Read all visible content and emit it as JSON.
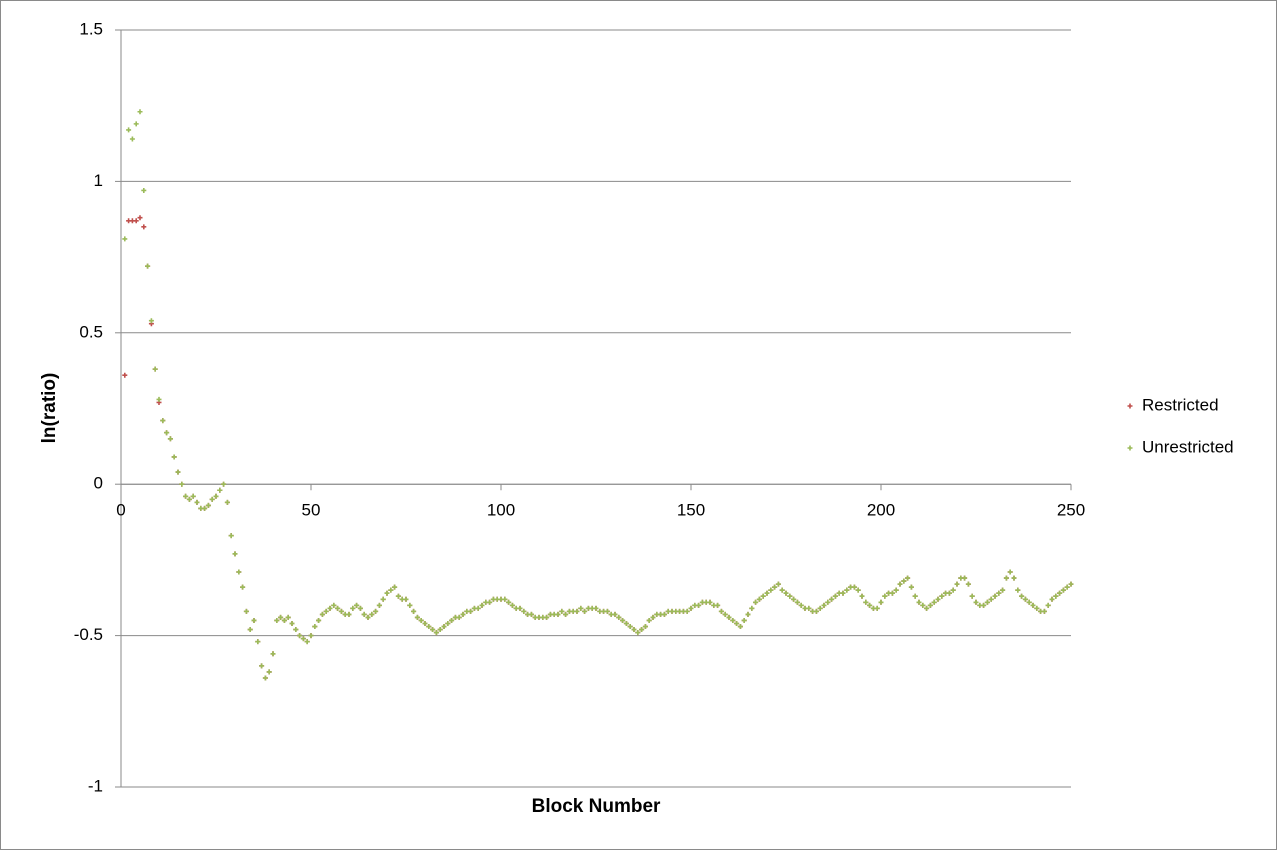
{
  "chart_data": {
    "type": "scatter",
    "xlabel": "Block Number",
    "ylabel": "ln(ratio)",
    "xlim": [
      0,
      250
    ],
    "xticks": [
      0,
      50,
      100,
      150,
      200,
      250
    ],
    "ylim": [
      -1,
      1.5
    ],
    "yticks": [
      -1,
      -0.5,
      0,
      0.5,
      1,
      1.5
    ],
    "grid": true,
    "legend": "right",
    "x": [
      1,
      2,
      3,
      4,
      5,
      6,
      7,
      8,
      9,
      10,
      11,
      12,
      13,
      14,
      15,
      16,
      17,
      18,
      19,
      20,
      21,
      22,
      23,
      24,
      25,
      26,
      27,
      28,
      29,
      30,
      31,
      32,
      33,
      34,
      35,
      36,
      37,
      38,
      39,
      40,
      41,
      42,
      43,
      44,
      45,
      46,
      47,
      48,
      49,
      50,
      51,
      52,
      53,
      54,
      55,
      56,
      57,
      58,
      59,
      60,
      61,
      62,
      63,
      64,
      65,
      66,
      67,
      68,
      69,
      70,
      71,
      72,
      73,
      74,
      75,
      76,
      77,
      78,
      79,
      80,
      81,
      82,
      83,
      84,
      85,
      86,
      87,
      88,
      89,
      90,
      91,
      92,
      93,
      94,
      95,
      96,
      97,
      98,
      99,
      100,
      101,
      102,
      103,
      104,
      105,
      106,
      107,
      108,
      109,
      110,
      111,
      112,
      113,
      114,
      115,
      116,
      117,
      118,
      119,
      120,
      121,
      122,
      123,
      124,
      125,
      126,
      127,
      128,
      129,
      130,
      131,
      132,
      133,
      134,
      135,
      136,
      137,
      138,
      139,
      140,
      141,
      142,
      143,
      144,
      145,
      146,
      147,
      148,
      149,
      150,
      151,
      152,
      153,
      154,
      155,
      156,
      157,
      158,
      159,
      160,
      161,
      162,
      163,
      164,
      165,
      166,
      167,
      168,
      169,
      170,
      171,
      172,
      173,
      174,
      175,
      176,
      177,
      178,
      179,
      180,
      181,
      182,
      183,
      184,
      185,
      186,
      187,
      188,
      189,
      190,
      191,
      192,
      193,
      194,
      195,
      196,
      197,
      198,
      199,
      200,
      201,
      202,
      203,
      204,
      205,
      206,
      207,
      208,
      209,
      210,
      211,
      212,
      213,
      214,
      215,
      216,
      217,
      218,
      219,
      220,
      221,
      222,
      223,
      224,
      225,
      226,
      227,
      228,
      229,
      230,
      231,
      232,
      233,
      234,
      235,
      236,
      237,
      238,
      239,
      240,
      241,
      242,
      243,
      244,
      245,
      246,
      247,
      248,
      249,
      250
    ],
    "series": [
      {
        "name": "Restricted",
        "color": "#c0504d",
        "values": [
          0.36,
          0.87,
          0.87,
          0.87,
          0.88,
          0.85,
          0.72,
          0.53,
          0.38,
          0.27,
          0.21,
          0.17,
          0.15,
          0.09,
          0.04,
          0.0,
          -0.04,
          -0.05,
          -0.04,
          -0.06,
          -0.08,
          -0.08,
          -0.07,
          -0.05,
          -0.04,
          -0.02,
          0.0,
          -0.06,
          -0.17,
          -0.23,
          -0.29,
          -0.34,
          -0.42,
          -0.48,
          -0.45,
          -0.52,
          -0.6,
          -0.64,
          -0.62,
          -0.56,
          -0.45,
          -0.44,
          -0.45,
          -0.44,
          -0.46,
          -0.48,
          -0.5,
          -0.51,
          -0.52,
          -0.5,
          -0.47,
          -0.45,
          -0.43,
          -0.42,
          -0.41,
          -0.4,
          -0.41,
          -0.42,
          -0.43,
          -0.43,
          -0.41,
          -0.4,
          -0.41,
          -0.43,
          -0.44,
          -0.43,
          -0.42,
          -0.4,
          -0.38,
          -0.36,
          -0.35,
          -0.34,
          -0.37,
          -0.38,
          -0.38,
          -0.4,
          -0.42,
          -0.44,
          -0.45,
          -0.46,
          -0.47,
          -0.48,
          -0.49,
          -0.48,
          -0.47,
          -0.46,
          -0.45,
          -0.44,
          -0.44,
          -0.43,
          -0.42,
          -0.42,
          -0.41,
          -0.41,
          -0.4,
          -0.39,
          -0.39,
          -0.38,
          -0.38,
          -0.38,
          -0.38,
          -0.39,
          -0.4,
          -0.41,
          -0.41,
          -0.42,
          -0.43,
          -0.43,
          -0.44,
          -0.44,
          -0.44,
          -0.44,
          -0.43,
          -0.43,
          -0.43,
          -0.42,
          -0.43,
          -0.42,
          -0.42,
          -0.42,
          -0.41,
          -0.42,
          -0.41,
          -0.41,
          -0.41,
          -0.42,
          -0.42,
          -0.42,
          -0.43,
          -0.43,
          -0.44,
          -0.45,
          -0.46,
          -0.47,
          -0.48,
          -0.49,
          -0.48,
          -0.47,
          -0.45,
          -0.44,
          -0.43,
          -0.43,
          -0.43,
          -0.42,
          -0.42,
          -0.42,
          -0.42,
          -0.42,
          -0.42,
          -0.41,
          -0.4,
          -0.4,
          -0.39,
          -0.39,
          -0.39,
          -0.4,
          -0.4,
          -0.42,
          -0.43,
          -0.44,
          -0.45,
          -0.46,
          -0.47,
          -0.45,
          -0.43,
          -0.41,
          -0.39,
          -0.38,
          -0.37,
          -0.36,
          -0.35,
          -0.34,
          -0.33,
          -0.35,
          -0.36,
          -0.37,
          -0.38,
          -0.39,
          -0.4,
          -0.41,
          -0.41,
          -0.42,
          -0.42,
          -0.41,
          -0.4,
          -0.39,
          -0.38,
          -0.37,
          -0.36,
          -0.36,
          -0.35,
          -0.34,
          -0.34,
          -0.35,
          -0.37,
          -0.39,
          -0.4,
          -0.41,
          -0.41,
          -0.39,
          -0.37,
          -0.36,
          -0.36,
          -0.35,
          -0.33,
          -0.32,
          -0.31,
          -0.34,
          -0.37,
          -0.39,
          -0.4,
          -0.41,
          -0.4,
          -0.39,
          -0.38,
          -0.37,
          -0.36,
          -0.36,
          -0.35,
          -0.33,
          -0.31,
          -0.31,
          -0.33,
          -0.37,
          -0.39,
          -0.4,
          -0.4,
          -0.39,
          -0.38,
          -0.37,
          -0.36,
          -0.35,
          -0.31,
          -0.29,
          -0.31,
          -0.35,
          -0.37,
          -0.38,
          -0.39,
          -0.4,
          -0.41,
          -0.42,
          -0.42,
          -0.4,
          -0.38,
          -0.37,
          -0.36,
          -0.35,
          -0.34,
          -0.33
        ]
      },
      {
        "name": "Unrestricted",
        "color": "#9bbb59",
        "values": [
          0.81,
          1.17,
          1.14,
          1.19,
          1.23,
          0.97,
          0.72,
          0.54,
          0.38,
          0.28,
          0.21,
          0.17,
          0.15,
          0.09,
          0.04,
          0.0,
          -0.04,
          -0.05,
          -0.04,
          -0.06,
          -0.08,
          -0.08,
          -0.07,
          -0.05,
          -0.04,
          -0.02,
          0.0,
          -0.06,
          -0.17,
          -0.23,
          -0.29,
          -0.34,
          -0.42,
          -0.48,
          -0.45,
          -0.52,
          -0.6,
          -0.64,
          -0.62,
          -0.56,
          -0.45,
          -0.44,
          -0.45,
          -0.44,
          -0.46,
          -0.48,
          -0.5,
          -0.51,
          -0.52,
          -0.5,
          -0.47,
          -0.45,
          -0.43,
          -0.42,
          -0.41,
          -0.4,
          -0.41,
          -0.42,
          -0.43,
          -0.43,
          -0.41,
          -0.4,
          -0.41,
          -0.43,
          -0.44,
          -0.43,
          -0.42,
          -0.4,
          -0.38,
          -0.36,
          -0.35,
          -0.34,
          -0.37,
          -0.38,
          -0.38,
          -0.4,
          -0.42,
          -0.44,
          -0.45,
          -0.46,
          -0.47,
          -0.48,
          -0.49,
          -0.48,
          -0.47,
          -0.46,
          -0.45,
          -0.44,
          -0.44,
          -0.43,
          -0.42,
          -0.42,
          -0.41,
          -0.41,
          -0.4,
          -0.39,
          -0.39,
          -0.38,
          -0.38,
          -0.38,
          -0.38,
          -0.39,
          -0.4,
          -0.41,
          -0.41,
          -0.42,
          -0.43,
          -0.43,
          -0.44,
          -0.44,
          -0.44,
          -0.44,
          -0.43,
          -0.43,
          -0.43,
          -0.42,
          -0.43,
          -0.42,
          -0.42,
          -0.42,
          -0.41,
          -0.42,
          -0.41,
          -0.41,
          -0.41,
          -0.42,
          -0.42,
          -0.42,
          -0.43,
          -0.43,
          -0.44,
          -0.45,
          -0.46,
          -0.47,
          -0.48,
          -0.49,
          -0.48,
          -0.47,
          -0.45,
          -0.44,
          -0.43,
          -0.43,
          -0.43,
          -0.42,
          -0.42,
          -0.42,
          -0.42,
          -0.42,
          -0.42,
          -0.41,
          -0.4,
          -0.4,
          -0.39,
          -0.39,
          -0.39,
          -0.4,
          -0.4,
          -0.42,
          -0.43,
          -0.44,
          -0.45,
          -0.46,
          -0.47,
          -0.45,
          -0.43,
          -0.41,
          -0.39,
          -0.38,
          -0.37,
          -0.36,
          -0.35,
          -0.34,
          -0.33,
          -0.35,
          -0.36,
          -0.37,
          -0.38,
          -0.39,
          -0.4,
          -0.41,
          -0.41,
          -0.42,
          -0.42,
          -0.41,
          -0.4,
          -0.39,
          -0.38,
          -0.37,
          -0.36,
          -0.36,
          -0.35,
          -0.34,
          -0.34,
          -0.35,
          -0.37,
          -0.39,
          -0.4,
          -0.41,
          -0.41,
          -0.39,
          -0.37,
          -0.36,
          -0.36,
          -0.35,
          -0.33,
          -0.32,
          -0.31,
          -0.34,
          -0.37,
          -0.39,
          -0.4,
          -0.41,
          -0.4,
          -0.39,
          -0.38,
          -0.37,
          -0.36,
          -0.36,
          -0.35,
          -0.33,
          -0.31,
          -0.31,
          -0.33,
          -0.37,
          -0.39,
          -0.4,
          -0.4,
          -0.39,
          -0.38,
          -0.37,
          -0.36,
          -0.35,
          -0.31,
          -0.29,
          -0.31,
          -0.35,
          -0.37,
          -0.38,
          -0.39,
          -0.4,
          -0.41,
          -0.42,
          -0.42,
          -0.4,
          -0.38,
          -0.37,
          -0.36,
          -0.35,
          -0.34,
          -0.33
        ]
      }
    ]
  }
}
